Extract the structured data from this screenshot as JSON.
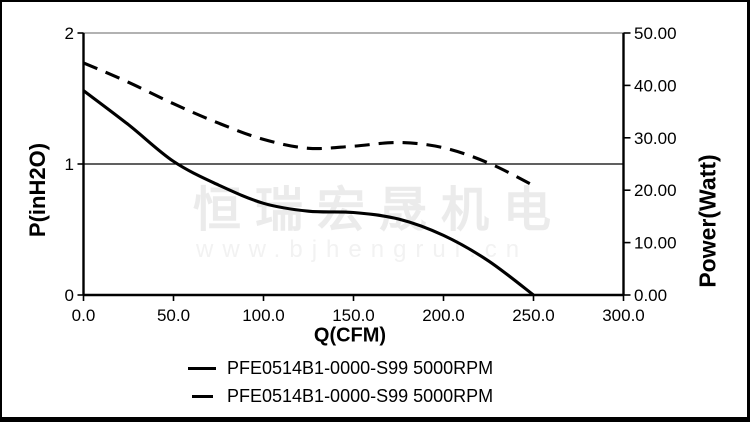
{
  "chart_data": {
    "type": "line",
    "title": "",
    "xlabel": "Q(CFM)",
    "ylabel_left": "P(inH2O)",
    "ylabel_right": "Power(Watt)",
    "xlim": [
      0,
      300
    ],
    "ylim_left": [
      0,
      2
    ],
    "ylim_right": [
      0,
      50
    ],
    "grid": "off",
    "legend_position": "bottom-center",
    "x_axis": {
      "tick_values": [
        0,
        50,
        100,
        150,
        200,
        250,
        300
      ],
      "tick_labels": [
        "0.0",
        "50.0",
        "100.0",
        "150.0",
        "200.0",
        "250.0",
        "300.0"
      ]
    },
    "y_axis_left": {
      "tick_values": [
        0,
        1,
        2
      ],
      "tick_labels": [
        "0",
        "1",
        "2"
      ]
    },
    "y_axis_right": {
      "tick_values": [
        0,
        10,
        20,
        30,
        40,
        50
      ],
      "tick_labels": [
        "0.00",
        "10.00",
        "20.00",
        "30.00",
        "40.00",
        "50.00"
      ]
    },
    "reference_line": {
      "axis": "left",
      "value": 1
    },
    "series": [
      {
        "name": "PFE0514B1-0000-S99 5000RPM",
        "line_style": "solid",
        "axis": "left",
        "unit": "inH2O",
        "points": [
          [
            0,
            1.56
          ],
          [
            25,
            1.3
          ],
          [
            50,
            1.02
          ],
          [
            75,
            0.84
          ],
          [
            100,
            0.7
          ],
          [
            125,
            0.64
          ],
          [
            150,
            0.63
          ],
          [
            175,
            0.58
          ],
          [
            200,
            0.455
          ],
          [
            225,
            0.26
          ],
          [
            250,
            0
          ]
        ]
      },
      {
        "name": "PFE0514B1-0000-S99 5000RPM",
        "line_style": "dashed",
        "axis": "right",
        "unit": "Watt",
        "points": [
          [
            0,
            44.3
          ],
          [
            25,
            40.6
          ],
          [
            50,
            36.5
          ],
          [
            75,
            32.8
          ],
          [
            100,
            29.7
          ],
          [
            125,
            28.0
          ],
          [
            150,
            28.4
          ],
          [
            175,
            29.1
          ],
          [
            200,
            28.1
          ],
          [
            225,
            25.2
          ],
          [
            250,
            20.9
          ]
        ]
      }
    ]
  },
  "watermark": {
    "line1": "恒瑞宏晟机电",
    "line2": "www.bjhengrui.cn"
  },
  "colors": {
    "line": "#000000",
    "top_border_line": "#999999",
    "axis": "#000000",
    "watermark_cn": "#ebebeb",
    "watermark_url": "#f2f2f2",
    "frame": "#000000"
  }
}
